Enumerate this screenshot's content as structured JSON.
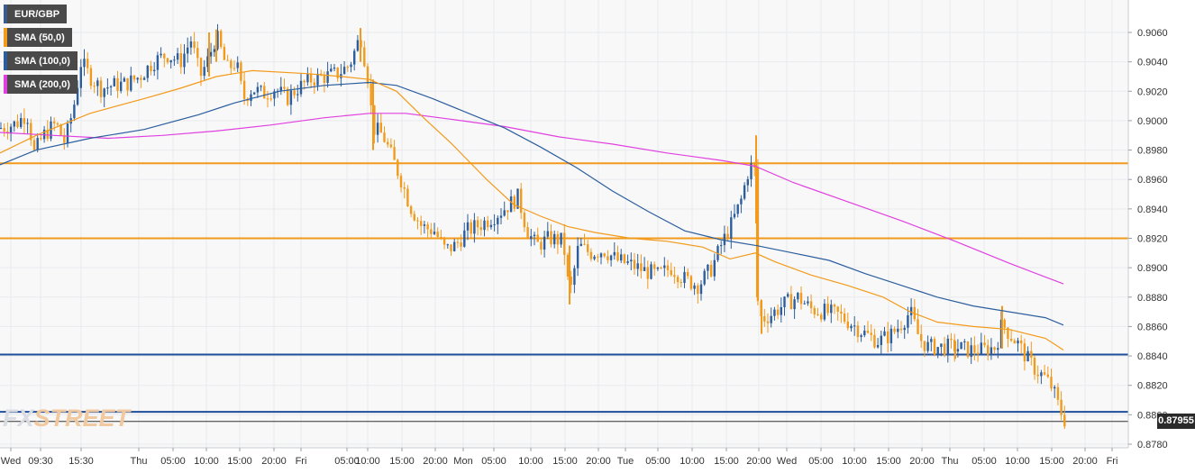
{
  "chart_data": {
    "type": "candlestick",
    "symbol": "EUR/GBP",
    "y_range": [
      0.8775,
      0.9072
    ],
    "y_ticks": [
      "0.9060",
      "0.9040",
      "0.9020",
      "0.9000",
      "0.8980",
      "0.8960",
      "0.8940",
      "0.8920",
      "0.8900",
      "0.8880",
      "0.8860",
      "0.8840",
      "0.8820",
      "0.8800",
      "0.8780"
    ],
    "x_ticks": [
      "Wed",
      "09:30",
      "15:30",
      "Thu",
      "05:00",
      "10:00",
      "15:00",
      "20:00",
      "Fri",
      "05:00",
      "10:00",
      "15:00",
      "20:00",
      "Mon",
      "05:00",
      "10:00",
      "15:00",
      "20:00",
      "Tue",
      "05:00",
      "10:00",
      "15:00",
      "20:00",
      "Wed",
      "05:00",
      "10:00",
      "15:00",
      "20:00",
      "Thu",
      "05:00",
      "10:00",
      "15:00",
      "20:00",
      "Fri"
    ],
    "legend": [
      {
        "label": "EUR/GBP",
        "color": "#3b5b8c"
      },
      {
        "label": "SMA (50,0)",
        "color": "#f29a1b"
      },
      {
        "label": "SMA (100,0)",
        "color": "#2c5e9e"
      },
      {
        "label": "SMA (200,0)",
        "color": "#e040e0"
      }
    ],
    "horizontal_levels": [
      {
        "value": 0.8971,
        "color": "#f29a1b"
      },
      {
        "value": 0.892,
        "color": "#f29a1b"
      },
      {
        "value": 0.8841,
        "color": "#1f4e9b"
      },
      {
        "value": 0.8802,
        "color": "#1f4e9b"
      }
    ],
    "last_price": "0.87955",
    "colors": {
      "up": "#2c5e9e",
      "down": "#f29a1b",
      "grid": "#e8eaee",
      "plot_bg": "#f8f8f8"
    },
    "path": [
      [
        0,
        0.8995
      ],
      [
        18,
        0.8998
      ],
      [
        30,
        0.9005
      ],
      [
        38,
        0.8978
      ],
      [
        48,
        0.899
      ],
      [
        62,
        0.8998
      ],
      [
        72,
        0.8985
      ],
      [
        82,
        0.901
      ],
      [
        90,
        0.904
      ],
      [
        100,
        0.903
      ],
      [
        112,
        0.9022
      ],
      [
        125,
        0.9024
      ],
      [
        140,
        0.9025
      ],
      [
        155,
        0.903
      ],
      [
        170,
        0.904
      ],
      [
        185,
        0.9045
      ],
      [
        200,
        0.904
      ],
      [
        212,
        0.9055
      ],
      [
        222,
        0.903
      ],
      [
        230,
        0.904
      ],
      [
        240,
        0.9058
      ],
      [
        252,
        0.9035
      ],
      [
        262,
        0.904
      ],
      [
        270,
        0.9015
      ],
      [
        280,
        0.9022
      ],
      [
        292,
        0.9018
      ],
      [
        305,
        0.9022
      ],
      [
        318,
        0.9015
      ],
      [
        330,
        0.9022
      ],
      [
        345,
        0.9028
      ],
      [
        360,
        0.903
      ],
      [
        375,
        0.9032
      ],
      [
        388,
        0.9038
      ],
      [
        400,
        0.9058
      ],
      [
        408,
        0.903
      ],
      [
        414,
        0.8995
      ],
      [
        425,
        0.899
      ],
      [
        435,
        0.8975
      ],
      [
        445,
        0.896
      ],
      [
        455,
        0.8942
      ],
      [
        468,
        0.8928
      ],
      [
        482,
        0.8925
      ],
      [
        494,
        0.8912
      ],
      [
        505,
        0.8915
      ],
      [
        518,
        0.8925
      ],
      [
        535,
        0.893
      ],
      [
        555,
        0.8938
      ],
      [
        575,
        0.8948
      ],
      [
        585,
        0.8925
      ],
      [
        595,
        0.8915
      ],
      [
        610,
        0.892
      ],
      [
        625,
        0.8918
      ],
      [
        632,
        0.888
      ],
      [
        642,
        0.8915
      ],
      [
        655,
        0.891
      ],
      [
        670,
        0.8912
      ],
      [
        685,
        0.8905
      ],
      [
        700,
        0.8902
      ],
      [
        715,
        0.8898
      ],
      [
        730,
        0.8895
      ],
      [
        745,
        0.89
      ],
      [
        760,
        0.8892
      ],
      [
        775,
        0.8888
      ],
      [
        790,
        0.89
      ],
      [
        800,
        0.8915
      ],
      [
        812,
        0.893
      ],
      [
        822,
        0.8945
      ],
      [
        830,
        0.8965
      ],
      [
        837,
        0.8972
      ],
      [
        840,
        0.888
      ],
      [
        845,
        0.8865
      ],
      [
        855,
        0.8868
      ],
      [
        870,
        0.8875
      ],
      [
        885,
        0.888
      ],
      [
        900,
        0.8872
      ],
      [
        915,
        0.887
      ],
      [
        930,
        0.8868
      ],
      [
        945,
        0.8862
      ],
      [
        960,
        0.8855
      ],
      [
        975,
        0.885
      ],
      [
        990,
        0.8855
      ],
      [
        1000,
        0.8862
      ],
      [
        1010,
        0.887
      ],
      [
        1020,
        0.8852
      ],
      [
        1030,
        0.8846
      ],
      [
        1045,
        0.8846
      ],
      [
        1060,
        0.8846
      ],
      [
        1075,
        0.8844
      ],
      [
        1090,
        0.8844
      ],
      [
        1105,
        0.8846
      ],
      [
        1112,
        0.8862
      ],
      [
        1120,
        0.8855
      ],
      [
        1130,
        0.8848
      ],
      [
        1140,
        0.8838
      ],
      [
        1150,
        0.883
      ],
      [
        1160,
        0.8825
      ],
      [
        1168,
        0.8818
      ],
      [
        1175,
        0.8805
      ],
      [
        1182,
        0.87955
      ]
    ],
    "spikes": [
      [
        232,
        0.906,
        0.903
      ],
      [
        240,
        0.9062,
        0.904
      ],
      [
        400,
        0.9063,
        0.904
      ],
      [
        414,
        0.9028,
        0.898
      ],
      [
        632,
        0.8915,
        0.8875
      ],
      [
        839,
        0.899,
        0.893
      ],
      [
        840,
        0.893,
        0.888
      ],
      [
        845,
        0.8878,
        0.8855
      ],
      [
        1112,
        0.8874,
        0.8845
      ],
      [
        1060,
        0.885,
        0.8838
      ]
    ],
    "sma50": [
      [
        0,
        0.8978
      ],
      [
        40,
        0.899
      ],
      [
        100,
        0.9005
      ],
      [
        160,
        0.9015
      ],
      [
        200,
        0.9022
      ],
      [
        240,
        0.903
      ],
      [
        280,
        0.9034
      ],
      [
        340,
        0.9032
      ],
      [
        380,
        0.903
      ],
      [
        410,
        0.9028
      ],
      [
        440,
        0.902
      ],
      [
        470,
        0.9002
      ],
      [
        500,
        0.8985
      ],
      [
        540,
        0.896
      ],
      [
        570,
        0.8943
      ],
      [
        600,
        0.8935
      ],
      [
        630,
        0.8928
      ],
      [
        660,
        0.8924
      ],
      [
        700,
        0.892
      ],
      [
        740,
        0.8918
      ],
      [
        780,
        0.8914
      ],
      [
        810,
        0.8906
      ],
      [
        838,
        0.891
      ],
      [
        860,
        0.8904
      ],
      [
        900,
        0.8895
      ],
      [
        940,
        0.8888
      ],
      [
        980,
        0.888
      ],
      [
        1010,
        0.887
      ],
      [
        1040,
        0.8863
      ],
      [
        1080,
        0.886
      ],
      [
        1120,
        0.8858
      ],
      [
        1160,
        0.8852
      ],
      [
        1180,
        0.8844
      ]
    ],
    "sma100": [
      [
        0,
        0.897
      ],
      [
        40,
        0.898
      ],
      [
        100,
        0.8988
      ],
      [
        160,
        0.8994
      ],
      [
        220,
        0.9004
      ],
      [
        260,
        0.9012
      ],
      [
        310,
        0.902
      ],
      [
        360,
        0.9024
      ],
      [
        410,
        0.9026
      ],
      [
        440,
        0.9024
      ],
      [
        480,
        0.9015
      ],
      [
        520,
        0.9005
      ],
      [
        560,
        0.8995
      ],
      [
        600,
        0.8982
      ],
      [
        640,
        0.8968
      ],
      [
        680,
        0.8952
      ],
      [
        720,
        0.8938
      ],
      [
        760,
        0.8925
      ],
      [
        800,
        0.8919
      ],
      [
        840,
        0.8915
      ],
      [
        880,
        0.891
      ],
      [
        920,
        0.8905
      ],
      [
        960,
        0.8896
      ],
      [
        1000,
        0.8888
      ],
      [
        1040,
        0.888
      ],
      [
        1080,
        0.8874
      ],
      [
        1120,
        0.887
      ],
      [
        1160,
        0.8866
      ],
      [
        1180,
        0.8861
      ]
    ],
    "sma200": [
      [
        0,
        0.8992
      ],
      [
        60,
        0.899
      ],
      [
        120,
        0.8988
      ],
      [
        180,
        0.899
      ],
      [
        240,
        0.8993
      ],
      [
        300,
        0.8997
      ],
      [
        360,
        0.9002
      ],
      [
        410,
        0.9005
      ],
      [
        450,
        0.9005
      ],
      [
        500,
        0.9001
      ],
      [
        560,
        0.8996
      ],
      [
        620,
        0.8989
      ],
      [
        680,
        0.8984
      ],
      [
        740,
        0.8978
      ],
      [
        800,
        0.8973
      ],
      [
        838,
        0.8969
      ],
      [
        880,
        0.8958
      ],
      [
        940,
        0.8945
      ],
      [
        1000,
        0.8932
      ],
      [
        1060,
        0.8918
      ],
      [
        1120,
        0.8903
      ],
      [
        1180,
        0.8889
      ]
    ]
  },
  "watermark": {
    "part1": "FX",
    "part2": "STREET"
  }
}
